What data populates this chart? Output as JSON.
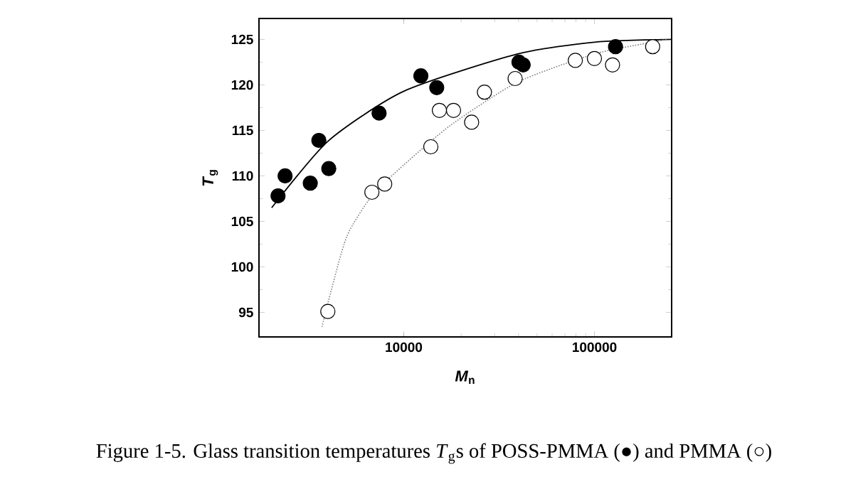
{
  "chart_data": {
    "type": "scatter",
    "xlabel": "*M*$_{n}$",
    "ylabel": "*T*$_{g}$",
    "log": "x",
    "xlim": [
      1742,
      254000
    ],
    "xticks": [
      10000,
      100000
    ],
    "ylim": [
      92.3,
      127.3
    ],
    "yticks": [
      95,
      100,
      105,
      110,
      115,
      120,
      125
    ],
    "series": [
      {
        "color": "#000000",
        "marker": "circle",
        "x": [
          2193,
          2388,
          3236,
          3590,
          4046,
          7430,
          12300,
          14900,
          40200,
          42300,
          129000
        ],
        "values": [
          107.8,
          110.0,
          109.2,
          113.9,
          110.8,
          116.9,
          121.0,
          119.7,
          122.5,
          122.2,
          124.2
        ]
      },
      {
        "color": "#ffffff",
        "marker": "circle",
        "x": [
          4000,
          6810,
          7950,
          13870,
          15380,
          18250,
          22700,
          26500,
          38400,
          79400,
          100000,
          124400,
          202000
        ],
        "values": [
          95.1,
          108.2,
          109.1,
          113.2,
          117.2,
          117.2,
          115.9,
          119.2,
          120.7,
          122.7,
          122.9,
          122.2,
          124.2
        ]
      },
      {
        "type": "line",
        "color": "#000000",
        "line_style": "solid",
        "x": [
          2030,
          4000,
          10000,
          39500,
          100000,
          254000
        ],
        "values": [
          106.5,
          113.8,
          119.3,
          123.4,
          124.7,
          125.0
        ]
      },
      {
        "type": "line",
        "color": "#808080",
        "line_style": "dotted",
        "x": [
          3730,
          4000,
          5020,
          6810,
          10000,
          17700,
          39500,
          100000,
          202000,
          240000
        ],
        "values": [
          93.4,
          96.0,
          103.3,
          107.8,
          111.2,
          115.6,
          120.3,
          123.4,
          124.7,
          125.0
        ]
      }
    ],
    "annotations": [
      "Figure 1-5. Glass transition temperatures *T*$_{g}$s of POSS-PMMA (●) and PMMA (○)"
    ]
  }
}
